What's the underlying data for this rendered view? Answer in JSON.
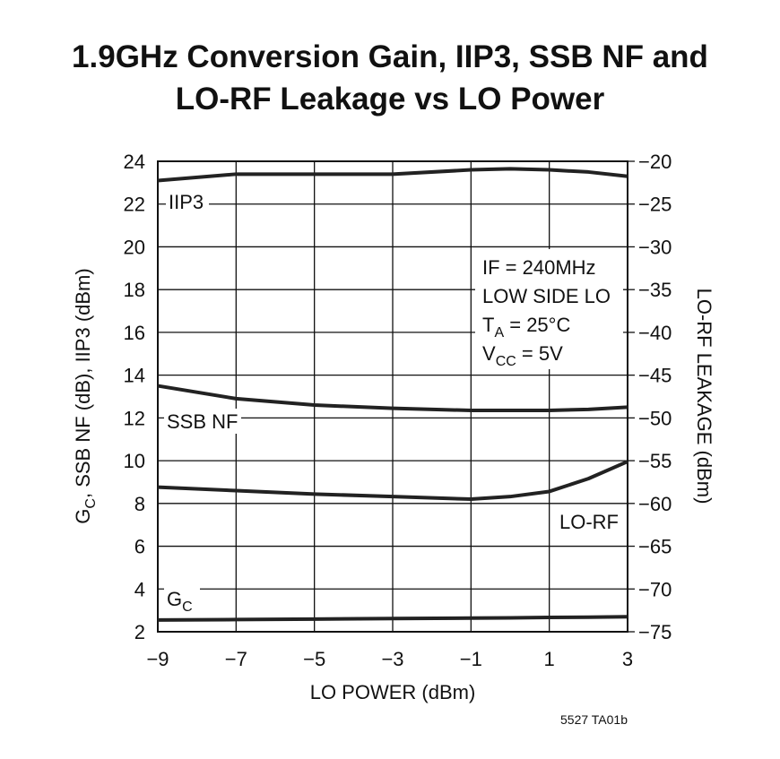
{
  "chart_data": {
    "type": "line",
    "title": [
      "1.9GHz Conversion Gain, IIP3, SSB NF and",
      "LO-RF Leakage vs LO Power"
    ],
    "xlabel": "LO POWER (dBm)",
    "ylabel": {
      "text": "G",
      "sub": "C",
      "rest": ", SSB NF (dB), IIP3 (dBm)"
    },
    "y2label": "LO-RF LEAKAGE (dBm)",
    "x": [
      -9,
      -7,
      -5,
      -3,
      -1,
      0,
      1,
      2,
      3
    ],
    "xlim": [
      -9,
      3
    ],
    "xticks": [
      {
        "value": -9,
        "label": "−9"
      },
      {
        "value": -7,
        "label": "−7"
      },
      {
        "value": -5,
        "label": "−5"
      },
      {
        "value": -3,
        "label": "−3"
      },
      {
        "value": -1,
        "label": "−1"
      },
      1,
      3
    ],
    "ylim": [
      2,
      24
    ],
    "yticks": [
      2,
      4,
      6,
      8,
      10,
      12,
      14,
      16,
      18,
      20,
      22,
      24
    ],
    "y2lim": [
      -75,
      -20
    ],
    "y2ticks": [
      {
        "value": -75,
        "label": "−75"
      },
      {
        "value": -70,
        "label": "−70"
      },
      {
        "value": -65,
        "label": "−65"
      },
      {
        "value": -60,
        "label": "−60"
      },
      {
        "value": -55,
        "label": "−55"
      },
      {
        "value": -50,
        "label": "−50"
      },
      {
        "value": -45,
        "label": "−45"
      },
      {
        "value": -40,
        "label": "−40"
      },
      {
        "value": -35,
        "label": "−35"
      },
      {
        "value": -30,
        "label": "−30"
      },
      {
        "value": -25,
        "label": "−25"
      },
      {
        "value": -20,
        "label": "−20"
      }
    ],
    "grid": true,
    "series": [
      {
        "name": "IIP3",
        "color": "#222222",
        "values": [
          23.1,
          23.4,
          23.4,
          23.4,
          23.6,
          23.65,
          23.6,
          23.5,
          23.3
        ]
      },
      {
        "name": "SSB NF",
        "color": "#222222",
        "values": [
          13.5,
          12.9,
          12.6,
          12.45,
          12.35,
          12.35,
          12.35,
          12.4,
          12.5
        ]
      },
      {
        "name": "LO-RF",
        "color": "#222222",
        "axis": "y2",
        "values": [
          -58.1,
          -58.5,
          -58.9,
          -59.2,
          -59.5,
          -59.2,
          -58.6,
          -57.1,
          -55.1
        ]
      },
      {
        "name": "G",
        "name_sub": "C",
        "color": "#222222",
        "values": [
          2.55,
          2.57,
          2.59,
          2.62,
          2.64,
          2.65,
          2.67,
          2.68,
          2.7
        ]
      }
    ],
    "annotations": [
      {
        "text": "IF = 240MHz"
      },
      {
        "text": "LOW SIDE LO"
      },
      {
        "text": "T",
        "sub": "A",
        "rest": " = 25°C"
      },
      {
        "text": "V",
        "sub": "CC",
        "rest": " = 5V"
      }
    ],
    "footnote": "5527 TA01b"
  }
}
